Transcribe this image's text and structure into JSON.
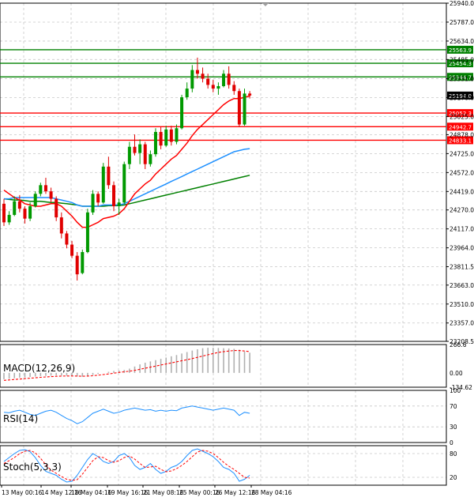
{
  "colors": {
    "bull": "#009900",
    "bear": "#e00000",
    "sma_fast": "#ff0000",
    "sma_mid": "#1e90ff",
    "sma_slow": "#008000",
    "macd_signal": "#ff0000",
    "macd_hist": "#b0b0b0",
    "rsi": "#1e90ff",
    "stoch_main": "#1e90ff",
    "stoch_signal": "#ff0000",
    "support": "#ff0000",
    "resistance": "#008000",
    "grid": "#c8c8c8",
    "axis": "#000000"
  },
  "chart_data": [
    {
      "type": "candlestick",
      "panel": "price",
      "ylim": [
        23208.5,
        25940.0
      ],
      "y_ticks": [
        "25940.0",
        "25787.0",
        "25634.0",
        "25485.0",
        "25331.0",
        "25178.0",
        "25025.0",
        "24878.0",
        "24725.0",
        "24572.0",
        "24419.0",
        "24270.0",
        "24117.0",
        "23964.0",
        "23811.5",
        "23663.0",
        "23510.0",
        "23357.0",
        "23208.5"
      ],
      "x_tick_labels": [
        "13 May 00:16",
        "14 May 12:16",
        "18 May 04:16",
        "19 May 16:16",
        "21 May 08:16",
        "25 May 00:16",
        "26 May 12:16",
        "28 May 04:16"
      ],
      "grid": true,
      "candles": [
        {
          "o": 24320,
          "h": 24360,
          "l": 24140,
          "c": 24170
        },
        {
          "o": 24170,
          "h": 24260,
          "l": 24150,
          "c": 24230
        },
        {
          "o": 24230,
          "h": 24380,
          "l": 24220,
          "c": 24340
        },
        {
          "o": 24340,
          "h": 24390,
          "l": 24250,
          "c": 24280
        },
        {
          "o": 24280,
          "h": 24300,
          "l": 24160,
          "c": 24200
        },
        {
          "o": 24200,
          "h": 24330,
          "l": 24180,
          "c": 24300
        },
        {
          "o": 24300,
          "h": 24420,
          "l": 24290,
          "c": 24400
        },
        {
          "o": 24400,
          "h": 24490,
          "l": 24380,
          "c": 24470
        },
        {
          "o": 24470,
          "h": 24530,
          "l": 24400,
          "c": 24420
        },
        {
          "o": 24420,
          "h": 24450,
          "l": 24330,
          "c": 24360
        },
        {
          "o": 24360,
          "h": 24380,
          "l": 24180,
          "c": 24210
        },
        {
          "o": 24210,
          "h": 24250,
          "l": 24040,
          "c": 24080
        },
        {
          "o": 24080,
          "h": 24100,
          "l": 23960,
          "c": 23990
        },
        {
          "o": 23990,
          "h": 24020,
          "l": 23880,
          "c": 23900
        },
        {
          "o": 23900,
          "h": 23930,
          "l": 23700,
          "c": 23750
        },
        {
          "o": 23760,
          "h": 23950,
          "l": 23750,
          "c": 23930
        },
        {
          "o": 23930,
          "h": 24280,
          "l": 23920,
          "c": 24250
        },
        {
          "o": 24250,
          "h": 24430,
          "l": 24230,
          "c": 24400
        },
        {
          "o": 24400,
          "h": 24420,
          "l": 24300,
          "c": 24330
        },
        {
          "o": 24330,
          "h": 24650,
          "l": 24320,
          "c": 24620
        },
        {
          "o": 24620,
          "h": 24700,
          "l": 24440,
          "c": 24470
        },
        {
          "o": 24470,
          "h": 24500,
          "l": 24260,
          "c": 24300
        },
        {
          "o": 24300,
          "h": 24360,
          "l": 24230,
          "c": 24330
        },
        {
          "o": 24330,
          "h": 24660,
          "l": 24320,
          "c": 24640
        },
        {
          "o": 24640,
          "h": 24820,
          "l": 24600,
          "c": 24780
        },
        {
          "o": 24780,
          "h": 24880,
          "l": 24710,
          "c": 24730
        },
        {
          "o": 24730,
          "h": 24840,
          "l": 24640,
          "c": 24800
        },
        {
          "o": 24800,
          "h": 24820,
          "l": 24600,
          "c": 24640
        },
        {
          "o": 24640,
          "h": 24750,
          "l": 24620,
          "c": 24720
        },
        {
          "o": 24720,
          "h": 24930,
          "l": 24700,
          "c": 24900
        },
        {
          "o": 24900,
          "h": 24940,
          "l": 24760,
          "c": 24790
        },
        {
          "o": 24790,
          "h": 24950,
          "l": 24780,
          "c": 24920
        },
        {
          "o": 24920,
          "h": 24950,
          "l": 24790,
          "c": 24820
        },
        {
          "o": 24820,
          "h": 24960,
          "l": 24800,
          "c": 24930
        },
        {
          "o": 24930,
          "h": 25200,
          "l": 24920,
          "c": 25180
        },
        {
          "o": 25180,
          "h": 25300,
          "l": 25160,
          "c": 25250
        },
        {
          "o": 25250,
          "h": 25440,
          "l": 25220,
          "c": 25400
        },
        {
          "o": 25400,
          "h": 25500,
          "l": 25330,
          "c": 25370
        },
        {
          "o": 25370,
          "h": 25420,
          "l": 25300,
          "c": 25330
        },
        {
          "o": 25330,
          "h": 25370,
          "l": 25250,
          "c": 25280
        },
        {
          "o": 25280,
          "h": 25320,
          "l": 25220,
          "c": 25250
        },
        {
          "o": 25250,
          "h": 25300,
          "l": 25200,
          "c": 25270
        },
        {
          "o": 25270,
          "h": 25400,
          "l": 25260,
          "c": 25370
        },
        {
          "o": 25370,
          "h": 25430,
          "l": 25250,
          "c": 25280
        },
        {
          "o": 25280,
          "h": 25310,
          "l": 25200,
          "c": 25230
        },
        {
          "o": 25230,
          "h": 25250,
          "l": 24940,
          "c": 24960
        },
        {
          "o": 24960,
          "h": 25250,
          "l": 24950,
          "c": 25210
        },
        {
          "o": 25210,
          "h": 25230,
          "l": 25170,
          "c": 25194
        }
      ],
      "ma_fast": [
        24430,
        24400,
        24370,
        24350,
        24320,
        24310,
        24300,
        24300,
        24310,
        24320,
        24320,
        24300,
        24260,
        24220,
        24170,
        24130,
        24130,
        24150,
        24170,
        24200,
        24210,
        24220,
        24240,
        24280,
        24340,
        24400,
        24440,
        24480,
        24510,
        24560,
        24600,
        24640,
        24680,
        24710,
        24760,
        24810,
        24870,
        24920,
        24960,
        25000,
        25040,
        25080,
        25120,
        25150,
        25170,
        25170,
        25180,
        25190
      ],
      "ma_mid": [
        24360,
        24360,
        24370,
        24370,
        24370,
        24370,
        24370,
        24370,
        24370,
        24370,
        24360,
        24350,
        24340,
        24330,
        24310,
        24300,
        24300,
        24300,
        24300,
        24310,
        24310,
        24310,
        24310,
        24320,
        24340,
        24360,
        24380,
        24400,
        24420,
        24440,
        24460,
        24480,
        24500,
        24520,
        24540,
        24560,
        24580,
        24600,
        24620,
        24640,
        24660,
        24680,
        24700,
        24720,
        24740,
        24750,
        24760,
        24765
      ],
      "ma_slow": [
        24360,
        24355,
        24350,
        24350,
        24345,
        24340,
        24340,
        24340,
        24335,
        24330,
        24330,
        24325,
        24320,
        24315,
        24310,
        24300,
        24300,
        24300,
        24300,
        24300,
        24305,
        24305,
        24305,
        24310,
        24320,
        24330,
        24340,
        24350,
        24360,
        24370,
        24380,
        24390,
        24400,
        24410,
        24420,
        24430,
        24440,
        24450,
        24460,
        24470,
        24480,
        24490,
        24500,
        24510,
        24520,
        24530,
        24540,
        24550
      ],
      "levels": [
        {
          "value": 25563.9,
          "label": "25563.9",
          "kind": "resistance"
        },
        {
          "value": 25454.3,
          "label": "25454.3",
          "kind": "resistance"
        },
        {
          "value": 25344.7,
          "label": "25344.7",
          "kind": "resistance"
        },
        {
          "value": 25194.0,
          "label": "25194.0",
          "kind": "last"
        },
        {
          "value": 25052.3,
          "label": "25052.3",
          "kind": "support"
        },
        {
          "value": 24942.7,
          "label": "24942.7",
          "kind": "support"
        },
        {
          "value": 24833.1,
          "label": "24833.1",
          "kind": "support"
        }
      ]
    },
    {
      "type": "bar",
      "panel": "macd",
      "title": "MACD(12,26,9)",
      "ylim": [
        -134.62,
        266.6
      ],
      "y_ticks": [
        "266.6",
        "0.00",
        "-134.62"
      ],
      "histogram": [
        -60,
        -55,
        -50,
        -45,
        -42,
        -38,
        -34,
        -30,
        -28,
        -26,
        -24,
        -24,
        -26,
        -30,
        -34,
        -36,
        -30,
        -20,
        -10,
        0,
        10,
        18,
        22,
        28,
        40,
        60,
        80,
        96,
        108,
        120,
        132,
        144,
        156,
        168,
        182,
        196,
        210,
        222,
        232,
        236,
        236,
        234,
        232,
        230,
        226,
        218,
        200,
        190
      ],
      "signal": [
        -70,
        -66,
        -62,
        -58,
        -54,
        -50,
        -46,
        -42,
        -38,
        -35,
        -32,
        -30,
        -29,
        -29,
        -30,
        -31,
        -30,
        -27,
        -22,
        -16,
        -10,
        -3,
        4,
        10,
        16,
        24,
        34,
        44,
        54,
        64,
        74,
        84,
        94,
        104,
        114,
        124,
        134,
        146,
        158,
        170,
        182,
        192,
        200,
        206,
        210,
        210,
        206,
        200
      ]
    },
    {
      "type": "line",
      "panel": "rsi",
      "title": "RSI(14)",
      "ylim": [
        0,
        100
      ],
      "y_ticks": [
        "100",
        "70",
        "30",
        "0"
      ],
      "values": [
        58,
        57,
        60,
        62,
        58,
        54,
        52,
        56,
        60,
        62,
        58,
        52,
        46,
        42,
        36,
        40,
        48,
        56,
        60,
        64,
        60,
        56,
        58,
        62,
        64,
        66,
        64,
        62,
        63,
        60,
        62,
        60,
        62,
        61,
        66,
        68,
        70,
        68,
        66,
        64,
        62,
        64,
        66,
        64,
        62,
        52,
        58,
        56
      ]
    },
    {
      "type": "line",
      "panel": "stoch",
      "title": "Stoch(5,3,3)",
      "ylim": [
        0,
        100
      ],
      "y_ticks": [
        "80",
        "20"
      ],
      "main": [
        60,
        70,
        80,
        88,
        90,
        85,
        70,
        50,
        35,
        30,
        25,
        15,
        8,
        10,
        25,
        45,
        65,
        80,
        72,
        60,
        55,
        60,
        75,
        80,
        70,
        50,
        40,
        45,
        55,
        40,
        30,
        35,
        45,
        50,
        60,
        75,
        88,
        92,
        86,
        80,
        72,
        60,
        45,
        40,
        30,
        10,
        15,
        25
      ],
      "signal": [
        55,
        62,
        70,
        80,
        86,
        88,
        82,
        68,
        52,
        38,
        30,
        22,
        15,
        12,
        14,
        28,
        45,
        62,
        72,
        70,
        62,
        58,
        62,
        70,
        74,
        66,
        55,
        45,
        46,
        48,
        40,
        34,
        36,
        42,
        50,
        60,
        72,
        84,
        88,
        86,
        80,
        70,
        58,
        48,
        40,
        30,
        20,
        18
      ]
    }
  ]
}
